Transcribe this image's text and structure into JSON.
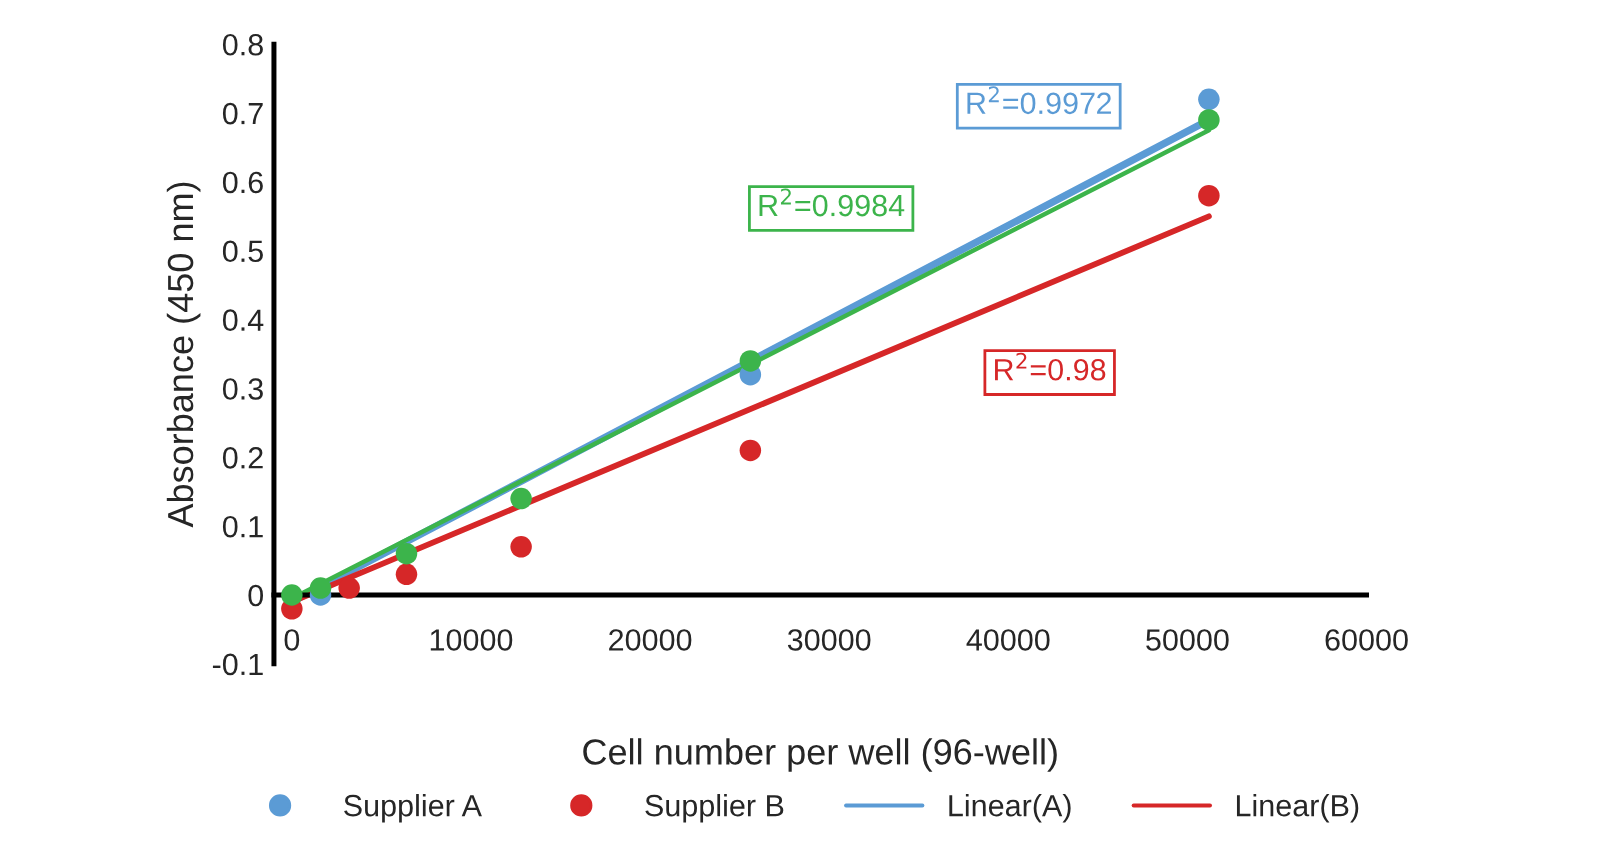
{
  "chart_data": {
    "type": "scatter",
    "xlabel": "Cell number per well (96-well)",
    "ylabel": "Absorbance (450 nm)",
    "xlim": [
      -1000,
      60000
    ],
    "xticks": [
      0,
      10000,
      20000,
      30000,
      40000,
      50000,
      60000
    ],
    "ylim": [
      -0.1,
      0.8
    ],
    "yticks": [
      -0.1,
      0,
      0.1,
      0.2,
      0.3,
      0.4,
      0.5,
      0.6,
      0.7,
      0.8
    ],
    "grid": false,
    "legend": "bottom",
    "series": [
      {
        "name": "Supplier A",
        "color": "#5b9bd5",
        "marker": "circle",
        "x": [
          1600,
          12800,
          25600,
          51200
        ],
        "values": [
          0.0,
          null,
          0.32,
          0.72
        ]
      },
      {
        "name": "Supplier B",
        "color": "#d62728",
        "marker": "circle",
        "x": [
          0,
          3200,
          6400,
          12800,
          25600,
          51200
        ],
        "values": [
          -0.02,
          0.01,
          0.03,
          0.07,
          0.21,
          0.58
        ]
      },
      {
        "color": "#3cb44b",
        "marker": "circle",
        "x": [
          0,
          1600,
          6400,
          12800,
          25600,
          51200
        ],
        "values": [
          0.0,
          0.01,
          0.06,
          0.14,
          0.34,
          0.69
        ]
      },
      {
        "name": "Linear(A)",
        "type": "line",
        "color": "#5b9bd5",
        "x": [
          0,
          51200
        ],
        "values": [
          -0.01,
          0.69
        ]
      },
      {
        "name": "Linear(B)",
        "type": "line",
        "color": "#d62728",
        "x": [
          0,
          51200
        ],
        "values": [
          -0.01,
          0.55
        ]
      },
      {
        "type": "line",
        "color": "#3cb44b",
        "x": [
          0,
          51200
        ],
        "values": [
          -0.005,
          0.675
        ]
      }
    ],
    "annotations": [
      "R$^{2}$=0.9972",
      "R$^{2}$=0.98",
      "R$^{2}$=0.9984"
    ]
  }
}
